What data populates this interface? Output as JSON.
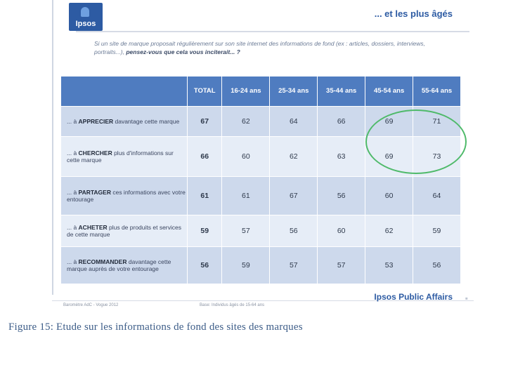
{
  "slide": {
    "logo_text": "Ipsos",
    "title": "... et les plus âgés",
    "question_text": "Si un site de marque proposait régulièrement sur son site internet des informations de fond (ex : articles, dossiers, interviews, portraits...),",
    "question_bold": "pensez-vous que cela vous inciterait... ?",
    "brand": "Ipsos Public Affairs",
    "brand_dots": "▪",
    "footer_left": "Baromètre AdC - Vogue 2012",
    "footer_mid": "Base: Individus âgés de 15-64 ans"
  },
  "table": {
    "headers": [
      "TOTAL",
      "16-24 ans",
      "25-34 ans",
      "35-44 ans",
      "45-54 ans",
      "55-64 ans"
    ],
    "rows": [
      {
        "prefix": "... à ",
        "verb": "APPRECIER",
        "rest": " davantage cette marque",
        "values": [
          "67",
          "62",
          "64",
          "66",
          "69",
          "71"
        ]
      },
      {
        "prefix": "... à ",
        "verb": "CHERCHER",
        "rest": " plus d'informations sur cette marque",
        "values": [
          "66",
          "60",
          "62",
          "63",
          "69",
          "73"
        ]
      },
      {
        "prefix": "... à ",
        "verb": "PARTAGER",
        "rest": " ces informations avec votre entourage",
        "values": [
          "61",
          "61",
          "67",
          "56",
          "60",
          "64"
        ]
      },
      {
        "prefix": "... à ",
        "verb": "ACHETER",
        "rest": " plus de produits et services de cette marque",
        "values": [
          "59",
          "57",
          "56",
          "60",
          "62",
          "59"
        ]
      },
      {
        "prefix": "... à ",
        "verb": "RECOMMANDER",
        "rest": " davantage cette marque auprès de votre entourage",
        "values": [
          "56",
          "59",
          "57",
          "57",
          "53",
          "56"
        ]
      }
    ]
  },
  "caption": "Figure 15: Etude sur les informations de fond des sites des marques",
  "colors": {
    "accent": "#2d5ba3",
    "header_bg": "#4f7cc0",
    "row_dark": "#cdd9ec",
    "row_light": "#e6edf7",
    "highlight": "#4fba6a"
  }
}
